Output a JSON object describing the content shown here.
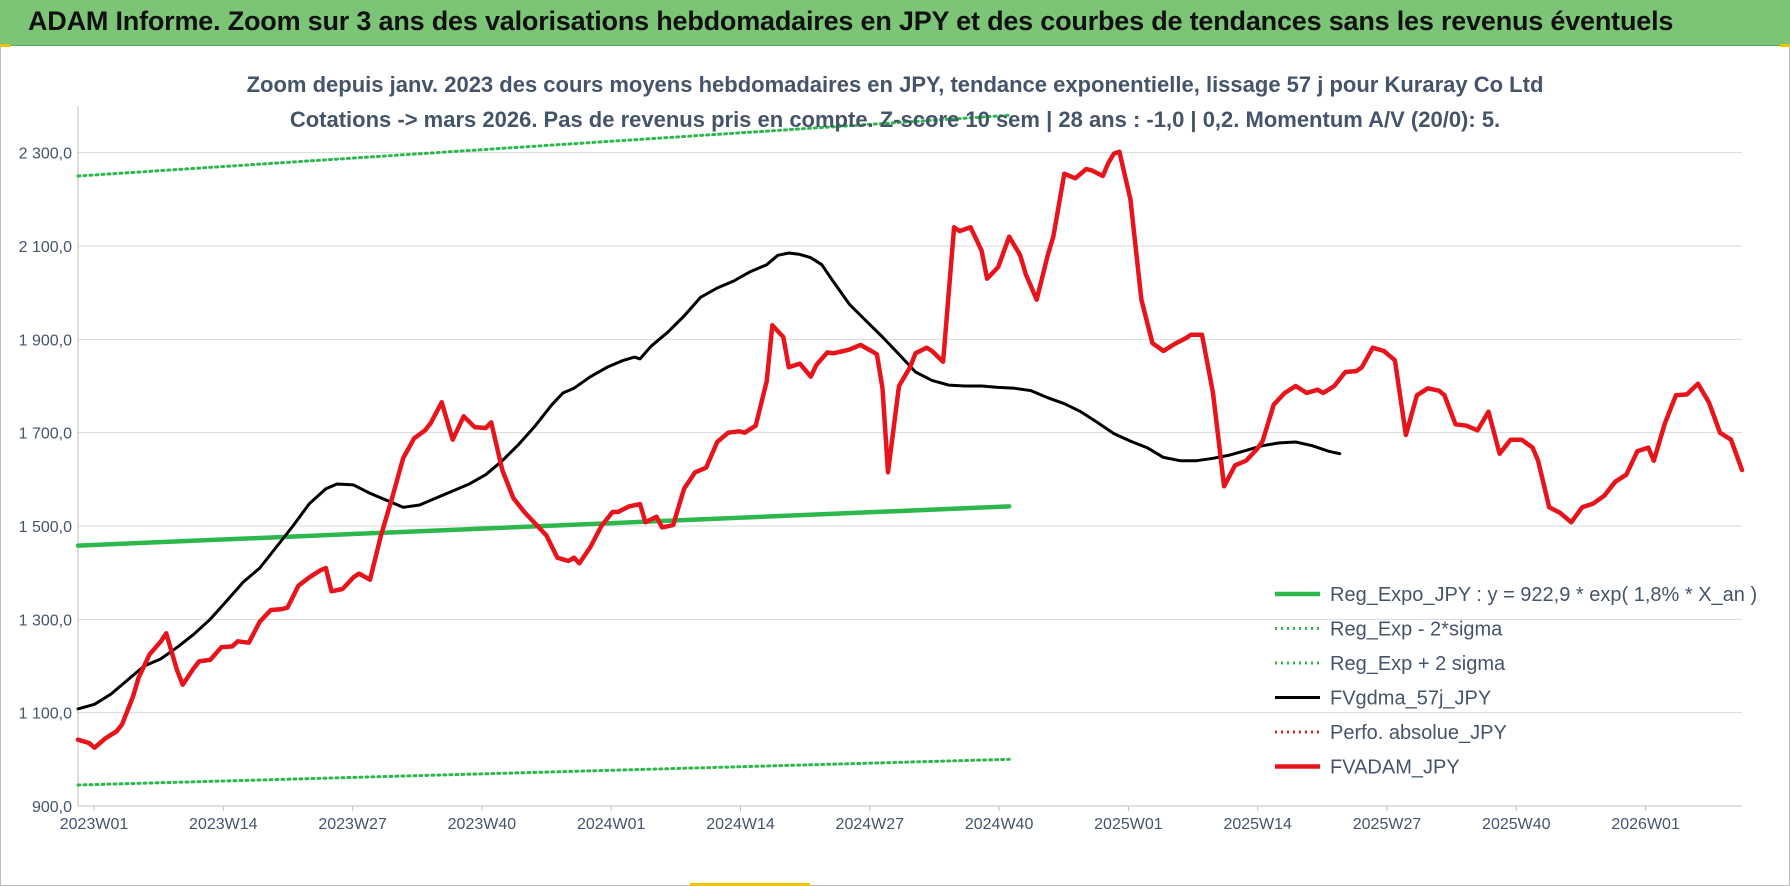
{
  "banner": {
    "title": "ADAM Informe. Zoom sur 3 ans des valorisations hebdomadaires en JPY et des courbes de tendances sans les revenus éventuels"
  },
  "colors": {
    "banner_bg": "#7cc576",
    "regression": "#2db84d",
    "sigma": "#2db84d",
    "gdma": "#000000",
    "perfo": "#e02020",
    "price": "#e8141c",
    "text": "#44546a"
  },
  "chart_data": {
    "type": "line",
    "title": "Zoom depuis janv. 2023 des cours moyens hebdomadaires en JPY, tendance exponentielle, lissage 57 j pour Kuraray Co Ltd",
    "subtitle": "Cotations -> mars 2026. Pas de revenus pris en compte. Z-score 10 sem | 28 ans : -1,0 | 0,2. Momentum A/V (20/0): 5.",
    "xlabel": "",
    "ylabel": "",
    "ylim": [
      900,
      2400
    ],
    "x_ticks": [
      "2023W01",
      "2023W14",
      "2023W27",
      "2023W40",
      "2024W01",
      "2024W14",
      "2024W27",
      "2024W40",
      "2025W01",
      "2025W14",
      "2025W27",
      "2025W40",
      "2026W01"
    ],
    "y_ticks": [
      "900,0",
      "1 100,0",
      "1 300,0",
      "1 500,0",
      "1 700,0",
      "1 900,0",
      "2 100,0",
      "2 300,0"
    ],
    "y_tick_values": [
      900,
      1100,
      1300,
      1500,
      1700,
      1900,
      2100,
      2300
    ],
    "week_count": 170,
    "legend_position": "right",
    "series": [
      {
        "name": "Reg_Expo_JPY : y = 922,9 * exp( 1,8% *  X_an )",
        "style": "solid-thick",
        "color": "#2db84d",
        "points": [
          [
            0,
            1458
          ],
          [
            169,
            1542
          ]
        ]
      },
      {
        "name": "Reg_Exp - 2*sigma",
        "style": "dotted",
        "color": "#2db84d",
        "points": [
          [
            0,
            945
          ],
          [
            169,
            1000
          ]
        ]
      },
      {
        "name": "Reg_Exp + 2 sigma",
        "style": "dotted",
        "color": "#2db84d",
        "points": [
          [
            0,
            2250
          ],
          [
            169,
            2380
          ]
        ]
      },
      {
        "name": "FVgdma_57j_JPY",
        "style": "solid",
        "color": "#000000",
        "points": [
          [
            0,
            1108
          ],
          [
            3,
            1118
          ],
          [
            6,
            1140
          ],
          [
            9,
            1170
          ],
          [
            12,
            1200
          ],
          [
            15,
            1215
          ],
          [
            18,
            1240
          ],
          [
            21,
            1268
          ],
          [
            24,
            1300
          ],
          [
            27,
            1340
          ],
          [
            30,
            1380
          ],
          [
            33,
            1410
          ],
          [
            36,
            1455
          ],
          [
            39,
            1500
          ],
          [
            42,
            1548
          ],
          [
            45,
            1580
          ],
          [
            47,
            1590
          ],
          [
            50,
            1588
          ],
          [
            53,
            1570
          ],
          [
            56,
            1555
          ],
          [
            59,
            1540
          ],
          [
            62,
            1545
          ],
          [
            65,
            1560
          ],
          [
            68,
            1575
          ],
          [
            71,
            1590
          ],
          [
            74,
            1610
          ],
          [
            77,
            1640
          ],
          [
            80,
            1675
          ],
          [
            83,
            1715
          ],
          [
            86,
            1760
          ],
          [
            88,
            1785
          ],
          [
            90,
            1795
          ],
          [
            93,
            1820
          ],
          [
            96,
            1840
          ],
          [
            99,
            1855
          ],
          [
            101,
            1862
          ],
          [
            102,
            1858
          ],
          [
            104,
            1885
          ],
          [
            107,
            1915
          ],
          [
            110,
            1950
          ],
          [
            113,
            1990
          ],
          [
            116,
            2010
          ],
          [
            119,
            2025
          ],
          [
            122,
            2045
          ],
          [
            125,
            2060
          ],
          [
            127,
            2080
          ],
          [
            129,
            2085
          ],
          [
            131,
            2082
          ],
          [
            133,
            2075
          ],
          [
            135,
            2060
          ],
          [
            137,
            2025
          ],
          [
            140,
            1975
          ],
          [
            143,
            1940
          ],
          [
            146,
            1905
          ],
          [
            149,
            1868
          ],
          [
            152,
            1830
          ],
          [
            155,
            1812
          ],
          [
            158,
            1802
          ],
          [
            161,
            1800
          ],
          [
            164,
            1800
          ],
          [
            167,
            1797
          ],
          [
            170,
            1795
          ],
          [
            173,
            1790
          ],
          [
            176,
            1775
          ],
          [
            179,
            1762
          ],
          [
            182,
            1745
          ],
          [
            185,
            1722
          ],
          [
            188,
            1698
          ],
          [
            191,
            1682
          ],
          [
            194,
            1668
          ],
          [
            197,
            1647
          ],
          [
            200,
            1640
          ],
          [
            203,
            1640
          ],
          [
            206,
            1645
          ],
          [
            209,
            1652
          ],
          [
            212,
            1662
          ],
          [
            215,
            1672
          ],
          [
            218,
            1678
          ],
          [
            221,
            1680
          ],
          [
            224,
            1672
          ],
          [
            227,
            1660
          ],
          [
            229,
            1655
          ]
        ]
      },
      {
        "name": "Perfo. absolue_JPY",
        "style": "dotted",
        "color": "#e02020",
        "points": []
      },
      {
        "name": "FVADAM_JPY",
        "style": "solid-thick",
        "color": "#e8141c",
        "points": [
          [
            0,
            1042
          ],
          [
            2,
            1035
          ],
          [
            3,
            1025
          ],
          [
            5,
            1045
          ],
          [
            7,
            1060
          ],
          [
            8,
            1075
          ],
          [
            10,
            1135
          ],
          [
            11,
            1175
          ],
          [
            13,
            1225
          ],
          [
            15,
            1252
          ],
          [
            16,
            1270
          ],
          [
            18,
            1190
          ],
          [
            19,
            1160
          ],
          [
            21,
            1195
          ],
          [
            22,
            1210
          ],
          [
            24,
            1213
          ],
          [
            26,
            1240
          ],
          [
            28,
            1242
          ],
          [
            29,
            1253
          ],
          [
            31,
            1250
          ],
          [
            33,
            1295
          ],
          [
            35,
            1320
          ],
          [
            37,
            1322
          ],
          [
            38,
            1325
          ],
          [
            40,
            1372
          ],
          [
            42,
            1390
          ],
          [
            44,
            1405
          ],
          [
            45,
            1410
          ],
          [
            46,
            1360
          ],
          [
            48,
            1365
          ],
          [
            50,
            1390
          ],
          [
            51,
            1398
          ],
          [
            53,
            1385
          ],
          [
            55,
            1480
          ],
          [
            57,
            1560
          ],
          [
            59,
            1645
          ],
          [
            61,
            1688
          ],
          [
            63,
            1705
          ],
          [
            64,
            1720
          ],
          [
            66,
            1765
          ],
          [
            68,
            1685
          ],
          [
            70,
            1735
          ],
          [
            72,
            1712
          ],
          [
            74,
            1710
          ],
          [
            75,
            1722
          ],
          [
            77,
            1620
          ],
          [
            79,
            1560
          ],
          [
            81,
            1530
          ],
          [
            83,
            1505
          ],
          [
            85,
            1480
          ],
          [
            87,
            1432
          ],
          [
            89,
            1425
          ],
          [
            90,
            1432
          ],
          [
            91,
            1420
          ],
          [
            93,
            1455
          ],
          [
            95,
            1500
          ],
          [
            97,
            1530
          ],
          [
            98,
            1530
          ],
          [
            100,
            1542
          ],
          [
            102,
            1547
          ],
          [
            103,
            1508
          ],
          [
            105,
            1520
          ],
          [
            106,
            1497
          ],
          [
            108,
            1502
          ],
          [
            110,
            1580
          ],
          [
            112,
            1615
          ],
          [
            114,
            1625
          ],
          [
            116,
            1680
          ],
          [
            118,
            1700
          ],
          [
            120,
            1703
          ],
          [
            121,
            1700
          ],
          [
            123,
            1715
          ],
          [
            125,
            1810
          ],
          [
            126,
            1930
          ],
          [
            128,
            1905
          ],
          [
            129,
            1840
          ],
          [
            131,
            1848
          ],
          [
            133,
            1820
          ],
          [
            134,
            1845
          ],
          [
            136,
            1872
          ],
          [
            137,
            1870
          ],
          [
            139,
            1875
          ],
          [
            140,
            1878
          ],
          [
            142,
            1888
          ],
          [
            144,
            1875
          ],
          [
            145,
            1868
          ],
          [
            146,
            1795
          ],
          [
            147,
            1615
          ],
          [
            149,
            1800
          ],
          [
            151,
            1840
          ],
          [
            152,
            1870
          ],
          [
            154,
            1882
          ],
          [
            155,
            1875
          ],
          [
            157,
            1852
          ],
          [
            159,
            2140
          ],
          [
            160,
            2132
          ],
          [
            162,
            2140
          ],
          [
            164,
            2090
          ],
          [
            165,
            2030
          ],
          [
            167,
            2055
          ],
          [
            169,
            2120
          ],
          [
            171,
            2080
          ],
          [
            172,
            2040
          ],
          [
            174,
            1985
          ],
          [
            176,
            2080
          ],
          [
            177,
            2120
          ],
          [
            179,
            2255
          ],
          [
            181,
            2245
          ],
          [
            183,
            2265
          ],
          [
            184,
            2262
          ],
          [
            186,
            2250
          ],
          [
            187,
            2278
          ],
          [
            188,
            2298
          ],
          [
            189,
            2302
          ],
          [
            191,
            2200
          ],
          [
            193,
            1985
          ],
          [
            195,
            1892
          ],
          [
            197,
            1875
          ],
          [
            199,
            1890
          ],
          [
            201,
            1902
          ],
          [
            202,
            1910
          ],
          [
            204,
            1910
          ],
          [
            206,
            1785
          ],
          [
            208,
            1585
          ],
          [
            210,
            1630
          ],
          [
            212,
            1640
          ],
          [
            214,
            1665
          ],
          [
            215,
            1682
          ],
          [
            217,
            1760
          ],
          [
            219,
            1785
          ],
          [
            221,
            1800
          ],
          [
            223,
            1785
          ],
          [
            225,
            1792
          ],
          [
            226,
            1785
          ],
          [
            228,
            1800
          ],
          [
            230,
            1830
          ],
          [
            232,
            1832
          ],
          [
            233,
            1840
          ],
          [
            235,
            1882
          ],
          [
            237,
            1875
          ],
          [
            239,
            1855
          ],
          [
            241,
            1695
          ],
          [
            243,
            1780
          ],
          [
            245,
            1795
          ],
          [
            247,
            1790
          ],
          [
            248,
            1780
          ],
          [
            250,
            1718
          ],
          [
            252,
            1715
          ],
          [
            254,
            1705
          ],
          [
            256,
            1745
          ],
          [
            258,
            1655
          ],
          [
            260,
            1685
          ],
          [
            262,
            1685
          ],
          [
            264,
            1668
          ],
          [
            265,
            1640
          ],
          [
            267,
            1540
          ],
          [
            269,
            1528
          ],
          [
            271,
            1508
          ],
          [
            273,
            1540
          ],
          [
            275,
            1548
          ],
          [
            277,
            1565
          ],
          [
            279,
            1595
          ],
          [
            281,
            1610
          ],
          [
            283,
            1660
          ],
          [
            285,
            1668
          ],
          [
            286,
            1640
          ],
          [
            288,
            1720
          ],
          [
            290,
            1780
          ],
          [
            292,
            1782
          ],
          [
            294,
            1805
          ],
          [
            296,
            1765
          ],
          [
            298,
            1700
          ],
          [
            300,
            1685
          ],
          [
            302,
            1620
          ]
        ]
      }
    ]
  }
}
